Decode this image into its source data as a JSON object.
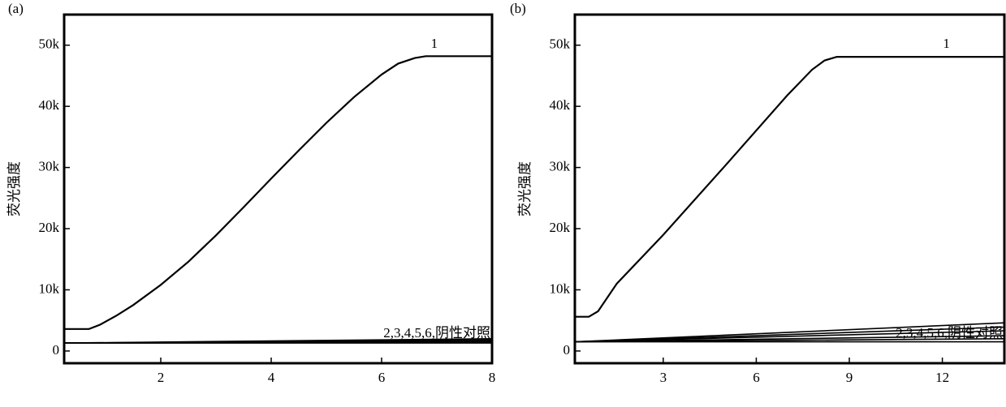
{
  "chart_data": [
    {
      "type": "line",
      "panel_label": "(a)",
      "ylabel": "荧光强度",
      "annotation": "2,3,4,5,6,阴性对照",
      "xlim": [
        0.25,
        8
      ],
      "xticks": [
        2,
        4,
        6,
        8
      ],
      "ylim": [
        -2000,
        55000
      ],
      "yticks": [
        0,
        {
          "value": 10000,
          "label": "10k"
        },
        {
          "value": 20000,
          "label": "20k"
        },
        {
          "value": 30000,
          "label": "30k"
        },
        {
          "value": 40000,
          "label": "40k"
        },
        {
          "value": 50000,
          "label": "50k"
        }
      ],
      "series": [
        {
          "name": "1",
          "color": "#000000",
          "x": [
            0.25,
            0.7,
            0.9,
            1.2,
            1.5,
            2,
            2.5,
            3,
            3.5,
            4,
            4.5,
            5,
            5.5,
            6,
            6.3,
            6.6,
            6.8,
            8
          ],
          "values": [
            3600,
            3600,
            4300,
            5800,
            7500,
            10800,
            14600,
            18900,
            23500,
            28200,
            32800,
            37300,
            41500,
            45200,
            47000,
            47900,
            48200,
            48200
          ]
        },
        {
          "color": "#000000",
          "x": [
            0.25,
            8
          ],
          "values": [
            1300,
            2000
          ]
        },
        {
          "color": "#000000",
          "x": [
            0.25,
            8
          ],
          "values": [
            1300,
            1800
          ]
        },
        {
          "color": "#000000",
          "x": [
            0.25,
            8
          ],
          "values": [
            1300,
            1600
          ]
        },
        {
          "color": "#000000",
          "x": [
            0.25,
            8
          ],
          "values": [
            1300,
            1500
          ]
        },
        {
          "color": "#000000",
          "x": [
            0.25,
            8
          ],
          "values": [
            1300,
            1400
          ]
        },
        {
          "color": "#000000",
          "x": [
            0.25,
            8
          ],
          "values": [
            1300,
            1300
          ]
        }
      ]
    },
    {
      "type": "line",
      "panel_label": "(b)",
      "ylabel": "荧光强度",
      "annotation": "2,3,4,5,6,阴性对照",
      "xlim": [
        0.15,
        14
      ],
      "xticks": [
        3,
        6,
        9,
        12
      ],
      "ylim": [
        -2000,
        55000
      ],
      "yticks": [
        0,
        {
          "value": 10000,
          "label": "10k"
        },
        {
          "value": 20000,
          "label": "20k"
        },
        {
          "value": 30000,
          "label": "30k"
        },
        {
          "value": 40000,
          "label": "40k"
        },
        {
          "value": 50000,
          "label": "50k"
        }
      ],
      "series": [
        {
          "name": "1",
          "color": "#000000",
          "x": [
            0.15,
            0.6,
            0.9,
            1.5,
            3,
            5,
            7,
            7.8,
            8.2,
            8.6,
            14
          ],
          "values": [
            5600,
            5600,
            6500,
            11000,
            19000,
            30300,
            41800,
            46000,
            47500,
            48100,
            48100
          ]
        },
        {
          "color": "#000000",
          "x": [
            0.15,
            14
          ],
          "values": [
            1500,
            4600
          ]
        },
        {
          "color": "#000000",
          "x": [
            0.15,
            14
          ],
          "values": [
            1500,
            3900
          ]
        },
        {
          "color": "#000000",
          "x": [
            0.15,
            14
          ],
          "values": [
            1500,
            3300
          ]
        },
        {
          "color": "#000000",
          "x": [
            0.15,
            14
          ],
          "values": [
            1500,
            2500
          ]
        },
        {
          "color": "#000000",
          "x": [
            0.15,
            14
          ],
          "values": [
            1500,
            2000
          ]
        },
        {
          "color": "#000000",
          "x": [
            0.15,
            14
          ],
          "values": [
            1500,
            1500
          ]
        }
      ]
    }
  ]
}
